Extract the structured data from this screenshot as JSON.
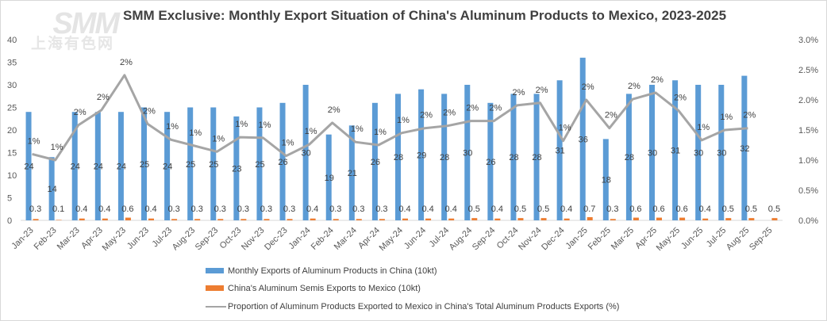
{
  "logo": {
    "brand": "SMM",
    "subtitle": "上海有色网"
  },
  "chart_data": {
    "type": "bar",
    "title": "SMM Exclusive: Monthly Export Situation of China's Aluminum Products to Mexico, 2023-2025",
    "xlabel": "",
    "ylabel": "",
    "ylim": [
      0,
      40
    ],
    "y_ticks": [
      "0",
      "5",
      "10",
      "15",
      "20",
      "25",
      "30",
      "35",
      "40"
    ],
    "y2lim": [
      0,
      3.0
    ],
    "y2_ticks": [
      "0.0%",
      "0.5%",
      "1.0%",
      "1.5%",
      "2.0%",
      "2.5%",
      "3.0%"
    ],
    "grid": false,
    "legend_position": "bottom",
    "categories": [
      "Jan-23",
      "Feb-23",
      "Mar-23",
      "Apr-23",
      "May-23",
      "Jun-23",
      "Jul-23",
      "Aug-23",
      "Sep-23",
      "Oct-23",
      "Nov-23",
      "Dec-23",
      "Jan-24",
      "Feb-24",
      "Mar-24",
      "Apr-24",
      "May-24",
      "Jun-24",
      "Jul-24",
      "Aug-24",
      "Sep-24",
      "Oct-24",
      "Nov-24",
      "Dec-24",
      "Jan-25",
      "Feb-25",
      "Mar-25",
      "Apr-25",
      "May-25",
      "Jun-25",
      "Jul-25",
      "Aug-25",
      "Sep-25"
    ],
    "series": [
      {
        "name": "Monthly Exports of Aluminum Products in China (10kt)",
        "type": "bar",
        "axis": "left",
        "color": "#5b9bd5",
        "values": [
          24,
          14,
          24,
          24,
          24,
          25,
          24,
          25,
          25,
          23,
          25,
          26,
          30,
          19,
          21,
          26,
          28,
          29,
          28,
          30,
          26,
          28,
          28,
          31,
          36,
          18,
          28,
          30,
          31,
          30,
          30,
          32,
          null
        ],
        "labels": [
          "24",
          "14",
          "24",
          "24",
          "24",
          "25",
          "24",
          "25",
          "25",
          "23",
          "25",
          "26",
          "30",
          "19",
          "21",
          "26",
          "28",
          "29",
          "28",
          "30",
          "26",
          "28",
          "28",
          "31",
          "36",
          "18",
          "28",
          "30",
          "31",
          "30",
          "30",
          "32",
          ""
        ]
      },
      {
        "name": "China's Aluminum Semis Exports to Mexico (10kt)",
        "type": "bar",
        "axis": "left",
        "color": "#ed7d31",
        "values": [
          0.3,
          0.1,
          0.4,
          0.4,
          0.6,
          0.4,
          0.3,
          0.3,
          0.3,
          0.3,
          0.3,
          0.3,
          0.4,
          0.3,
          0.3,
          0.3,
          0.4,
          0.4,
          0.4,
          0.5,
          0.4,
          0.5,
          0.5,
          0.4,
          0.7,
          0.3,
          0.6,
          0.6,
          0.6,
          0.4,
          0.5,
          0.5,
          0.5
        ],
        "labels": [
          "0.3",
          "0.1",
          "0.4",
          "0.4",
          "0.6",
          "0.4",
          "0.3",
          "0.3",
          "0.3",
          "0.3",
          "0.3",
          "0.3",
          "0.4",
          "0.3",
          "0.3",
          "0.3",
          "0.4",
          "0.4",
          "0.4",
          "0.5",
          "0.4",
          "0.5",
          "0.5",
          "0.4",
          "0.7",
          "0.3",
          "0.6",
          "0.6",
          "0.6",
          "0.4",
          "0.5",
          "0.5",
          "0.5"
        ]
      },
      {
        "name": "Proportion of Aluminum Products Exported to Mexico in China's Total Aluminum Products Exports (%)",
        "type": "line",
        "axis": "right",
        "color": "#a5a5a5",
        "values": [
          1.1,
          1.0,
          1.58,
          1.83,
          2.41,
          1.6,
          1.34,
          1.24,
          1.14,
          1.38,
          1.37,
          1.07,
          1.26,
          1.62,
          1.3,
          1.25,
          1.45,
          1.53,
          1.57,
          1.65,
          1.65,
          1.91,
          1.95,
          1.32,
          2.0,
          1.53,
          2.01,
          2.12,
          1.82,
          1.33,
          1.5,
          1.53,
          null
        ],
        "labels": [
          "1%",
          "1%",
          "2%",
          "2%",
          "2%",
          "2%",
          "1%",
          "1%",
          "1%",
          "1%",
          "1%",
          "1%",
          "1%",
          "2%",
          "1%",
          "1%",
          "1%",
          "2%",
          "2%",
          "2%",
          "2%",
          "2%",
          "2%",
          "1%",
          "2%",
          "2%",
          "2%",
          "2%",
          "2%",
          "1%",
          "1%",
          "2%",
          ""
        ]
      }
    ]
  }
}
